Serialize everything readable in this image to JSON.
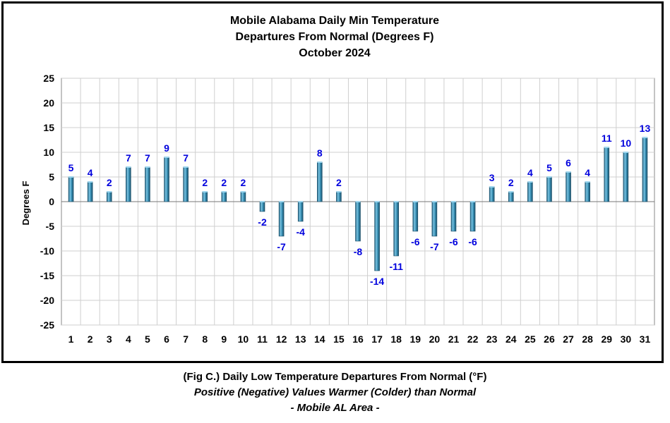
{
  "chart_data": {
    "type": "bar",
    "title_lines": [
      "Mobile Alabama Daily Min Temperature",
      "Departures From Normal (Degrees F)",
      "October 2024"
    ],
    "xlabel": "",
    "ylabel": "Degrees F",
    "ylim": [
      -25,
      25
    ],
    "yticks": [
      25,
      20,
      15,
      10,
      5,
      0,
      -5,
      -10,
      -15,
      -20,
      -25
    ],
    "grid": true,
    "categories": [
      "1",
      "2",
      "3",
      "4",
      "5",
      "6",
      "7",
      "8",
      "9",
      "10",
      "11",
      "12",
      "13",
      "14",
      "15",
      "16",
      "17",
      "18",
      "19",
      "20",
      "21",
      "22",
      "23",
      "24",
      "25",
      "26",
      "27",
      "28",
      "29",
      "30",
      "31"
    ],
    "values": [
      5,
      4,
      2,
      7,
      7,
      9,
      7,
      2,
      2,
      2,
      -2,
      -7,
      -4,
      8,
      2,
      -8,
      -14,
      -11,
      -6,
      -7,
      -6,
      -6,
      3,
      2,
      4,
      5,
      6,
      4,
      11,
      10,
      13
    ],
    "bar_color": "#3a93b8",
    "label_color": "#0000dd"
  },
  "caption": {
    "line1": "(Fig C.) Daily Low Temperature Departures From Normal (°F)",
    "line2": "Positive (Negative) Values Warmer (Colder) than Normal",
    "line3": "- Mobile AL Area -"
  }
}
